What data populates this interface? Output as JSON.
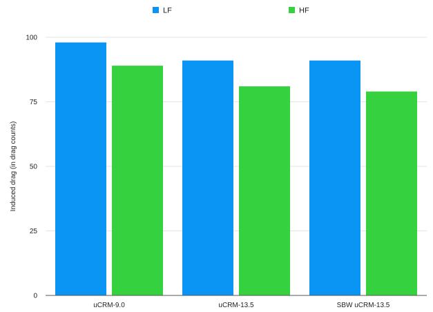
{
  "chart_data": {
    "type": "bar",
    "categories": [
      "uCRM-9.0",
      "uCRM-13.5",
      "SBW uCRM-13.5"
    ],
    "series": [
      {
        "name": "LF",
        "color": "#0a95f5",
        "values": [
          98,
          91,
          91
        ]
      },
      {
        "name": "HF",
        "color": "#36d13e",
        "values": [
          89,
          81,
          79
        ]
      }
    ],
    "title": "",
    "xlabel": "",
    "ylabel": "Induced drag (in drag counts)",
    "ylim": [
      0,
      100
    ],
    "yticks": [
      0,
      25,
      50,
      75,
      100
    ],
    "grid": true,
    "legend_position": "top-center"
  }
}
